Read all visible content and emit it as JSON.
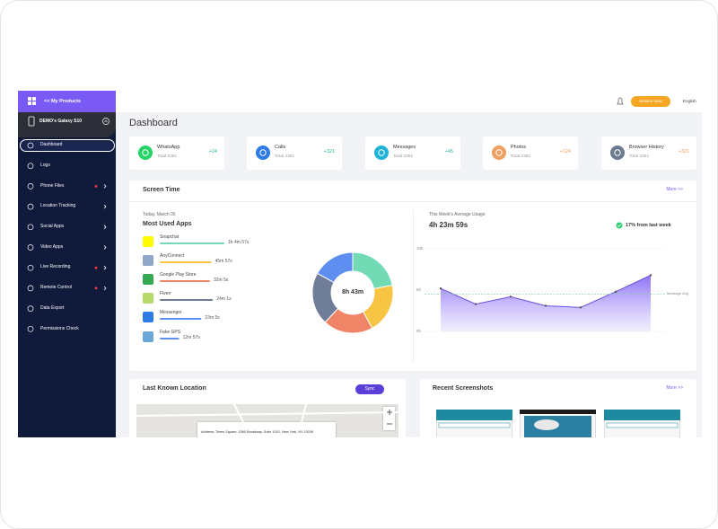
{
  "sidebar": {
    "header": "<< My Products",
    "device": "DEMO's Galaxy S10",
    "items": [
      {
        "label": "Dashboard",
        "active": true,
        "badge": false,
        "submenu": false
      },
      {
        "label": "Logs",
        "active": false,
        "badge": false,
        "submenu": false
      },
      {
        "label": "Phone Files",
        "active": false,
        "badge": true,
        "submenu": true
      },
      {
        "label": "Location Tracking",
        "active": false,
        "badge": false,
        "submenu": true
      },
      {
        "label": "Social Apps",
        "active": false,
        "badge": false,
        "submenu": true
      },
      {
        "label": "Video Apps",
        "active": false,
        "badge": false,
        "submenu": true
      },
      {
        "label": "Live Recording",
        "active": false,
        "badge": true,
        "submenu": true
      },
      {
        "label": "Remote Control",
        "active": false,
        "badge": true,
        "submenu": true
      },
      {
        "label": "Data Export",
        "active": false,
        "badge": false,
        "submenu": false
      },
      {
        "label": "Permissions Check",
        "active": false,
        "badge": false,
        "submenu": false
      }
    ]
  },
  "topbar": {
    "button": "Monitor Now",
    "language": "English"
  },
  "page_title": "Dashboard",
  "stats": [
    {
      "name": "WhatsApp",
      "total": "Total 2351",
      "change": "+24",
      "color": "#25d366",
      "change_color": "#2bb3a0"
    },
    {
      "name": "Calls",
      "total": "Total 2351",
      "change": "+321",
      "color": "#2d7be5",
      "change_color": "#2bb3a0"
    },
    {
      "name": "Messages",
      "total": "Total 2351",
      "change": "+45",
      "color": "#1fb3d6",
      "change_color": "#2bb3a0"
    },
    {
      "name": "Photos",
      "total": "Total 2351",
      "change": "+124",
      "color": "#f0a062",
      "change_color": "#f0a062"
    },
    {
      "name": "Browser History",
      "total": "Total 2351",
      "change": "+321",
      "color": "#6b7a8f",
      "change_color": "#f0a062"
    }
  ],
  "screen_time": {
    "title": "Screen Time",
    "more": "More >>",
    "date": "Today, March 05",
    "apps_title": "Most Used Apps",
    "apps": [
      {
        "name": "Snapchat",
        "time": "1h 4m 57s",
        "bar": 90,
        "color": "#72dbb5",
        "icon": "#fffc00"
      },
      {
        "name": "AnyConnect",
        "time": "45m 57s",
        "bar": 72,
        "color": "#f8c444",
        "icon": "#8fa7c8"
      },
      {
        "name": "Google Play Store",
        "time": "32m 5s",
        "bar": 70,
        "color": "#f08466",
        "icon": "#34a853"
      },
      {
        "name": "Fiverr",
        "time": "24m 1s",
        "bar": 74,
        "color": "#6f7d99",
        "icon": "#b7d86a"
      },
      {
        "name": "Messenger",
        "time": "23m 5s",
        "bar": 58,
        "color": "#5e8ff0",
        "icon": "#2d7be5"
      },
      {
        "name": "Fake GPS",
        "time": "12m 57s",
        "bar": 27,
        "color": "#5e8ff0",
        "icon": "#6aa6d8"
      }
    ],
    "donut": {
      "center": "8h 43m",
      "segments": [
        {
          "value": 22,
          "color": "#72dbb5"
        },
        {
          "value": 20,
          "color": "#f8c444"
        },
        {
          "value": 20,
          "color": "#f08466"
        },
        {
          "value": 21,
          "color": "#6f7d99"
        },
        {
          "value": 17,
          "color": "#5e8ff0"
        }
      ]
    },
    "weekly": {
      "title": "This Week's Average Usage",
      "total": "4h 23m 59s",
      "change": "17% from last week",
      "ylim": [
        0,
        10
      ],
      "yticks": [
        {
          "value": 10,
          "label": "10h"
        },
        {
          "value": 5,
          "label": "5h"
        },
        {
          "value": 0,
          "label": "0h"
        }
      ],
      "values": [
        5.2,
        3.3,
        4.2,
        3.1,
        2.9,
        4.8,
        6.8
      ],
      "average": 4.5,
      "average_label": "Message Avg",
      "color": "#6a4fe0"
    }
  },
  "location": {
    "title": "Last Known Location",
    "button": "Sync",
    "address": "Address: Times Square, 1560 Broadway, Suite 1001, New York, NY 10036"
  },
  "screenshots": {
    "title": "Recent Screenshots",
    "more": "More >>"
  }
}
